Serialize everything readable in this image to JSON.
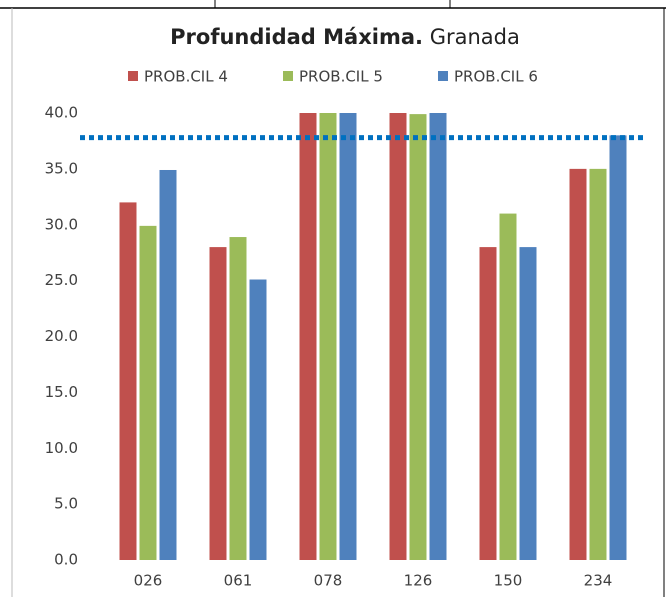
{
  "chart_data": {
    "type": "bar",
    "title": "Profundidad Máxima.",
    "subtitle": "Granada",
    "categories": [
      "026",
      "061",
      "078",
      "126",
      "150",
      "234"
    ],
    "series": [
      {
        "name": "PROB.CIL 4",
        "color": "#c0504d",
        "values": [
          32,
          28,
          40,
          40,
          28,
          35
        ]
      },
      {
        "name": "PROB.CIL 5",
        "color": "#9bbb59",
        "values": [
          29.9,
          28.9,
          40,
          39.9,
          31,
          35
        ]
      },
      {
        "name": "PROB.CIL 6",
        "color": "#4f81bd",
        "values": [
          34.9,
          25.1,
          40,
          40,
          28,
          38
        ]
      }
    ],
    "ylim": [
      0,
      40
    ],
    "yticks": [
      {
        "value": 0,
        "label": "0.0"
      },
      {
        "value": 5,
        "label": "5.0"
      },
      {
        "value": 10,
        "label": "10.0"
      },
      {
        "value": 15,
        "label": "15.0"
      },
      {
        "value": 20,
        "label": "20.0"
      },
      {
        "value": 25,
        "label": "25.0"
      },
      {
        "value": 30,
        "label": "30.0"
      },
      {
        "value": 35,
        "label": "35.0"
      },
      {
        "value": 40,
        "label": "40.0"
      }
    ],
    "grid": false,
    "legend": "top",
    "reference_line": {
      "value": 37.8,
      "color": "#0070c0"
    }
  }
}
